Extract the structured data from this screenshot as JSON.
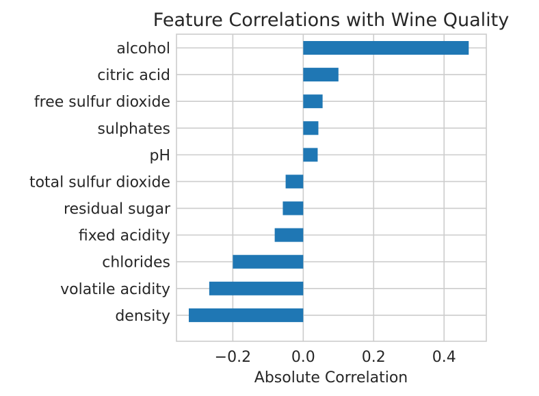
{
  "chart_data": {
    "type": "bar",
    "orientation": "horizontal",
    "title": "Feature Correlations with Wine Quality",
    "xlabel": "Absolute Correlation",
    "ylabel": "",
    "xlim": [
      -0.36,
      0.52
    ],
    "xticks": [
      -0.2,
      0.0,
      0.2,
      0.4
    ],
    "xtick_labels": [
      "−0.2",
      "0.0",
      "0.2",
      "0.4"
    ],
    "grid": true,
    "bar_color": "#1f77b4",
    "categories": [
      "alcohol",
      "citric acid",
      "free sulfur dioxide",
      "sulphates",
      "pH",
      "total sulfur dioxide",
      "residual sugar",
      "fixed acidity",
      "chlorides",
      "volatile acidity",
      "density"
    ],
    "values": [
      0.47,
      0.1,
      0.055,
      0.043,
      0.041,
      -0.05,
      -0.058,
      -0.081,
      -0.2,
      -0.267,
      -0.325
    ]
  }
}
